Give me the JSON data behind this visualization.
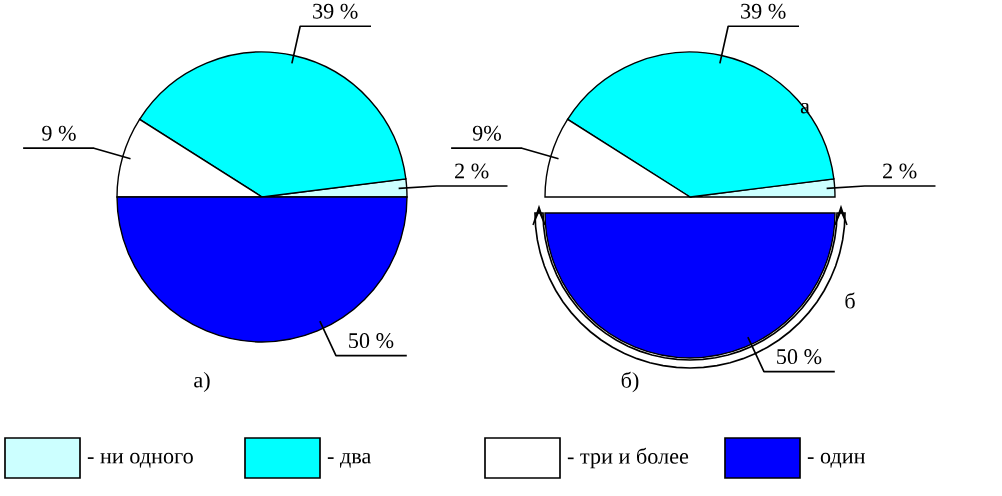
{
  "chart_data": [
    {
      "type": "pie",
      "title": "а)",
      "categories": [
        "- ни одного",
        "- два",
        "- три и более",
        "- один"
      ],
      "values": [
        2,
        39,
        9,
        50
      ],
      "colors": [
        "#ccffff",
        "#00ffff",
        "#ffffff",
        "#0000ff"
      ],
      "value_labels": [
        "2 %",
        "39 %",
        "9 %",
        "50 %"
      ],
      "legend": "bottom"
    },
    {
      "type": "pie",
      "title": "б)",
      "values": [
        2,
        39,
        9,
        50
      ],
      "colors": [
        "#ccffff",
        "#00ffff",
        "#ffffff",
        "#0000ff"
      ],
      "value_labels": [
        "2 %",
        "39 %",
        "9%",
        "50 %"
      ],
      "annotations": [
        "а",
        "б"
      ]
    }
  ]
}
